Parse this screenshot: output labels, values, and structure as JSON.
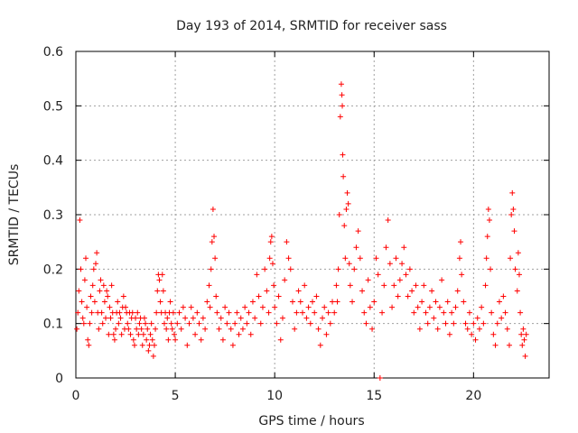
{
  "chart_data": {
    "type": "scatter",
    "title": "Day 193 of 2014, SRMTID for receiver sass",
    "xlabel": "GPS time / hours",
    "ylabel": "SRMTID / TECUs",
    "xlim": [
      0,
      23.8
    ],
    "ylim": [
      0,
      0.6
    ],
    "grid": true,
    "marker": "+",
    "color": "#ff0000",
    "x_ticks": [
      0,
      5,
      10,
      15,
      20
    ],
    "y_ticks": [
      0,
      0.1,
      0.2,
      0.3,
      0.4,
      0.5,
      0.6
    ],
    "x_tick_labels": [
      "0",
      "5",
      "10",
      "15",
      "20"
    ],
    "y_tick_labels": [
      "0",
      "0.1",
      "0.2",
      "0.3",
      "0.4",
      "0.5",
      "0.6"
    ],
    "series": [
      {
        "name": "SRMTID",
        "points": [
          [
            0.05,
            0.09
          ],
          [
            0.1,
            0.12
          ],
          [
            0.15,
            0.16
          ],
          [
            0.2,
            0.29
          ],
          [
            0.25,
            0.2
          ],
          [
            0.3,
            0.14
          ],
          [
            0.35,
            0.11
          ],
          [
            0.4,
            0.1
          ],
          [
            0.45,
            0.18
          ],
          [
            0.5,
            0.22
          ],
          [
            0.55,
            0.13
          ],
          [
            0.6,
            0.07
          ],
          [
            0.65,
            0.06
          ],
          [
            0.7,
            0.1
          ],
          [
            0.75,
            0.15
          ],
          [
            0.8,
            0.12
          ],
          [
            0.85,
            0.17
          ],
          [
            0.9,
            0.2
          ],
          [
            0.95,
            0.14
          ],
          [
            1.0,
            0.21
          ],
          [
            1.05,
            0.23
          ],
          [
            1.1,
            0.12
          ],
          [
            1.15,
            0.09
          ],
          [
            1.2,
            0.16
          ],
          [
            1.25,
            0.18
          ],
          [
            1.3,
            0.12
          ],
          [
            1.35,
            0.1
          ],
          [
            1.4,
            0.17
          ],
          [
            1.45,
            0.14
          ],
          [
            1.5,
            0.11
          ],
          [
            1.55,
            0.16
          ],
          [
            1.6,
            0.15
          ],
          [
            1.65,
            0.08
          ],
          [
            1.7,
            0.13
          ],
          [
            1.75,
            0.11
          ],
          [
            1.8,
            0.17
          ],
          [
            1.85,
            0.12
          ],
          [
            1.9,
            0.08
          ],
          [
            1.95,
            0.07
          ],
          [
            2.0,
            0.09
          ],
          [
            2.05,
            0.12
          ],
          [
            2.1,
            0.14
          ],
          [
            2.15,
            0.1
          ],
          [
            2.2,
            0.12
          ],
          [
            2.25,
            0.11
          ],
          [
            2.3,
            0.08
          ],
          [
            2.35,
            0.13
          ],
          [
            2.4,
            0.15
          ],
          [
            2.45,
            0.09
          ],
          [
            2.5,
            0.13
          ],
          [
            2.55,
            0.12
          ],
          [
            2.6,
            0.1
          ],
          [
            2.65,
            0.09
          ],
          [
            2.7,
            0.12
          ],
          [
            2.75,
            0.08
          ],
          [
            2.8,
            0.11
          ],
          [
            2.85,
            0.12
          ],
          [
            2.9,
            0.07
          ],
          [
            2.95,
            0.06
          ],
          [
            3.0,
            0.11
          ],
          [
            3.05,
            0.09
          ],
          [
            3.1,
            0.12
          ],
          [
            3.15,
            0.08
          ],
          [
            3.2,
            0.1
          ],
          [
            3.25,
            0.11
          ],
          [
            3.3,
            0.09
          ],
          [
            3.35,
            0.06
          ],
          [
            3.4,
            0.08
          ],
          [
            3.45,
            0.11
          ],
          [
            3.5,
            0.1
          ],
          [
            3.55,
            0.07
          ],
          [
            3.6,
            0.09
          ],
          [
            3.65,
            0.05
          ],
          [
            3.7,
            0.06
          ],
          [
            3.75,
            0.08
          ],
          [
            3.8,
            0.1
          ],
          [
            3.85,
            0.07
          ],
          [
            3.9,
            0.04
          ],
          [
            3.95,
            0.06
          ],
          [
            4.0,
            0.09
          ],
          [
            4.05,
            0.12
          ],
          [
            4.1,
            0.16
          ],
          [
            4.15,
            0.19
          ],
          [
            4.2,
            0.18
          ],
          [
            4.25,
            0.14
          ],
          [
            4.3,
            0.12
          ],
          [
            4.35,
            0.19
          ],
          [
            4.4,
            0.16
          ],
          [
            4.45,
            0.1
          ],
          [
            4.5,
            0.12
          ],
          [
            4.55,
            0.09
          ],
          [
            4.6,
            0.11
          ],
          [
            4.65,
            0.07
          ],
          [
            4.7,
            0.12
          ],
          [
            4.75,
            0.14
          ],
          [
            4.8,
            0.1
          ],
          [
            4.85,
            0.09
          ],
          [
            4.9,
            0.12
          ],
          [
            4.95,
            0.08
          ],
          [
            5.0,
            0.07
          ],
          [
            5.1,
            0.1
          ],
          [
            5.2,
            0.12
          ],
          [
            5.3,
            0.09
          ],
          [
            5.4,
            0.13
          ],
          [
            5.5,
            0.11
          ],
          [
            5.6,
            0.06
          ],
          [
            5.7,
            0.1
          ],
          [
            5.8,
            0.13
          ],
          [
            5.9,
            0.11
          ],
          [
            6.0,
            0.08
          ],
          [
            6.1,
            0.12
          ],
          [
            6.2,
            0.1
          ],
          [
            6.3,
            0.07
          ],
          [
            6.4,
            0.11
          ],
          [
            6.5,
            0.09
          ],
          [
            6.6,
            0.14
          ],
          [
            6.7,
            0.17
          ],
          [
            6.75,
            0.13
          ],
          [
            6.8,
            0.2
          ],
          [
            6.85,
            0.25
          ],
          [
            6.9,
            0.31
          ],
          [
            6.95,
            0.26
          ],
          [
            7.0,
            0.22
          ],
          [
            7.05,
            0.15
          ],
          [
            7.1,
            0.12
          ],
          [
            7.2,
            0.09
          ],
          [
            7.3,
            0.11
          ],
          [
            7.4,
            0.07
          ],
          [
            7.5,
            0.13
          ],
          [
            7.6,
            0.1
          ],
          [
            7.7,
            0.12
          ],
          [
            7.8,
            0.09
          ],
          [
            7.9,
            0.06
          ],
          [
            8.0,
            0.1
          ],
          [
            8.1,
            0.12
          ],
          [
            8.2,
            0.08
          ],
          [
            8.3,
            0.11
          ],
          [
            8.4,
            0.09
          ],
          [
            8.5,
            0.13
          ],
          [
            8.6,
            0.1
          ],
          [
            8.7,
            0.12
          ],
          [
            8.8,
            0.08
          ],
          [
            8.9,
            0.14
          ],
          [
            9.0,
            0.11
          ],
          [
            9.1,
            0.19
          ],
          [
            9.2,
            0.15
          ],
          [
            9.3,
            0.1
          ],
          [
            9.4,
            0.13
          ],
          [
            9.5,
            0.2
          ],
          [
            9.6,
            0.16
          ],
          [
            9.7,
            0.12
          ],
          [
            9.75,
            0.22
          ],
          [
            9.8,
            0.25
          ],
          [
            9.85,
            0.26
          ],
          [
            9.9,
            0.21
          ],
          [
            9.95,
            0.17
          ],
          [
            10.0,
            0.13
          ],
          [
            10.1,
            0.1
          ],
          [
            10.2,
            0.15
          ],
          [
            10.3,
            0.07
          ],
          [
            10.4,
            0.11
          ],
          [
            10.5,
            0.18
          ],
          [
            10.6,
            0.25
          ],
          [
            10.7,
            0.22
          ],
          [
            10.8,
            0.2
          ],
          [
            10.9,
            0.14
          ],
          [
            11.0,
            0.09
          ],
          [
            11.1,
            0.12
          ],
          [
            11.2,
            0.16
          ],
          [
            11.3,
            0.14
          ],
          [
            11.4,
            0.12
          ],
          [
            11.5,
            0.17
          ],
          [
            11.6,
            0.11
          ],
          [
            11.7,
            0.13
          ],
          [
            11.8,
            0.1
          ],
          [
            11.9,
            0.14
          ],
          [
            12.0,
            0.12
          ],
          [
            12.1,
            0.15
          ],
          [
            12.2,
            0.09
          ],
          [
            12.3,
            0.06
          ],
          [
            12.4,
            0.11
          ],
          [
            12.5,
            0.13
          ],
          [
            12.6,
            0.08
          ],
          [
            12.7,
            0.12
          ],
          [
            12.8,
            0.1
          ],
          [
            12.9,
            0.14
          ],
          [
            13.0,
            0.12
          ],
          [
            13.1,
            0.17
          ],
          [
            13.15,
            0.14
          ],
          [
            13.2,
            0.2
          ],
          [
            13.25,
            0.3
          ],
          [
            13.3,
            0.48
          ],
          [
            13.35,
            0.54
          ],
          [
            13.38,
            0.52
          ],
          [
            13.4,
            0.5
          ],
          [
            13.42,
            0.41
          ],
          [
            13.45,
            0.37
          ],
          [
            13.5,
            0.28
          ],
          [
            13.55,
            0.22
          ],
          [
            13.6,
            0.31
          ],
          [
            13.65,
            0.34
          ],
          [
            13.7,
            0.32
          ],
          [
            13.75,
            0.21
          ],
          [
            13.8,
            0.17
          ],
          [
            13.9,
            0.14
          ],
          [
            14.0,
            0.2
          ],
          [
            14.1,
            0.24
          ],
          [
            14.2,
            0.27
          ],
          [
            14.3,
            0.22
          ],
          [
            14.4,
            0.16
          ],
          [
            14.5,
            0.12
          ],
          [
            14.6,
            0.1
          ],
          [
            14.7,
            0.18
          ],
          [
            14.8,
            0.13
          ],
          [
            14.9,
            0.09
          ],
          [
            15.0,
            0.14
          ],
          [
            15.1,
            0.22
          ],
          [
            15.2,
            0.19
          ],
          [
            15.3,
            0.0
          ],
          [
            15.4,
            0.12
          ],
          [
            15.5,
            0.17
          ],
          [
            15.6,
            0.24
          ],
          [
            15.7,
            0.29
          ],
          [
            15.8,
            0.21
          ],
          [
            15.9,
            0.13
          ],
          [
            16.0,
            0.17
          ],
          [
            16.1,
            0.22
          ],
          [
            16.2,
            0.15
          ],
          [
            16.3,
            0.18
          ],
          [
            16.4,
            0.21
          ],
          [
            16.5,
            0.24
          ],
          [
            16.6,
            0.19
          ],
          [
            16.7,
            0.15
          ],
          [
            16.8,
            0.2
          ],
          [
            16.9,
            0.16
          ],
          [
            17.0,
            0.12
          ],
          [
            17.1,
            0.17
          ],
          [
            17.2,
            0.13
          ],
          [
            17.3,
            0.09
          ],
          [
            17.4,
            0.14
          ],
          [
            17.5,
            0.17
          ],
          [
            17.6,
            0.12
          ],
          [
            17.7,
            0.1
          ],
          [
            17.8,
            0.13
          ],
          [
            17.9,
            0.16
          ],
          [
            18.0,
            0.11
          ],
          [
            18.1,
            0.14
          ],
          [
            18.2,
            0.09
          ],
          [
            18.3,
            0.13
          ],
          [
            18.4,
            0.18
          ],
          [
            18.5,
            0.12
          ],
          [
            18.6,
            0.1
          ],
          [
            18.7,
            0.14
          ],
          [
            18.8,
            0.08
          ],
          [
            18.9,
            0.12
          ],
          [
            19.0,
            0.1
          ],
          [
            19.1,
            0.13
          ],
          [
            19.2,
            0.16
          ],
          [
            19.3,
            0.22
          ],
          [
            19.35,
            0.25
          ],
          [
            19.4,
            0.19
          ],
          [
            19.5,
            0.14
          ],
          [
            19.6,
            0.1
          ],
          [
            19.7,
            0.09
          ],
          [
            19.8,
            0.12
          ],
          [
            19.9,
            0.08
          ],
          [
            20.0,
            0.1
          ],
          [
            20.1,
            0.07
          ],
          [
            20.2,
            0.11
          ],
          [
            20.3,
            0.09
          ],
          [
            20.4,
            0.13
          ],
          [
            20.5,
            0.1
          ],
          [
            20.6,
            0.17
          ],
          [
            20.65,
            0.22
          ],
          [
            20.7,
            0.26
          ],
          [
            20.75,
            0.31
          ],
          [
            20.8,
            0.29
          ],
          [
            20.85,
            0.2
          ],
          [
            20.9,
            0.12
          ],
          [
            21.0,
            0.08
          ],
          [
            21.1,
            0.06
          ],
          [
            21.2,
            0.1
          ],
          [
            21.3,
            0.14
          ],
          [
            21.4,
            0.11
          ],
          [
            21.5,
            0.15
          ],
          [
            21.6,
            0.12
          ],
          [
            21.7,
            0.09
          ],
          [
            21.8,
            0.06
          ],
          [
            21.85,
            0.22
          ],
          [
            21.9,
            0.3
          ],
          [
            21.95,
            0.34
          ],
          [
            22.0,
            0.31
          ],
          [
            22.05,
            0.27
          ],
          [
            22.1,
            0.2
          ],
          [
            22.2,
            0.16
          ],
          [
            22.25,
            0.23
          ],
          [
            22.3,
            0.19
          ],
          [
            22.35,
            0.12
          ],
          [
            22.4,
            0.08
          ],
          [
            22.45,
            0.06
          ],
          [
            22.5,
            0.09
          ],
          [
            22.55,
            0.07
          ],
          [
            22.6,
            0.04
          ],
          [
            22.65,
            0.08
          ]
        ]
      }
    ]
  }
}
